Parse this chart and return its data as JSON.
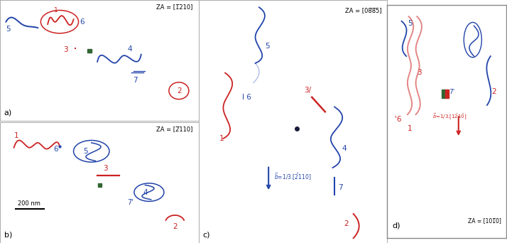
{
  "bg_color": "#ffffff",
  "panel_border_color": "#aaaaaa",
  "blue": "#2244aa",
  "red": "#cc2222",
  "green": "#336633",
  "darkdot": "#222244",
  "panels": {
    "a": {
      "za": "ZA = [Ħ1̅210]",
      "label": "a)"
    },
    "b": {
      "za": "ZA = [2̅110]",
      "label": "b)"
    },
    "c": {
      "za": "ZA = [08̅8̅5]",
      "label": "c)",
      "arrow": "⃗b=1/3.[Ħ2̅110]"
    },
    "d": {
      "za": "ZA = [101̅0]",
      "label": "d)",
      "arrow": "⃗b=1/3.[1Ħ2̅1̅0]"
    }
  }
}
